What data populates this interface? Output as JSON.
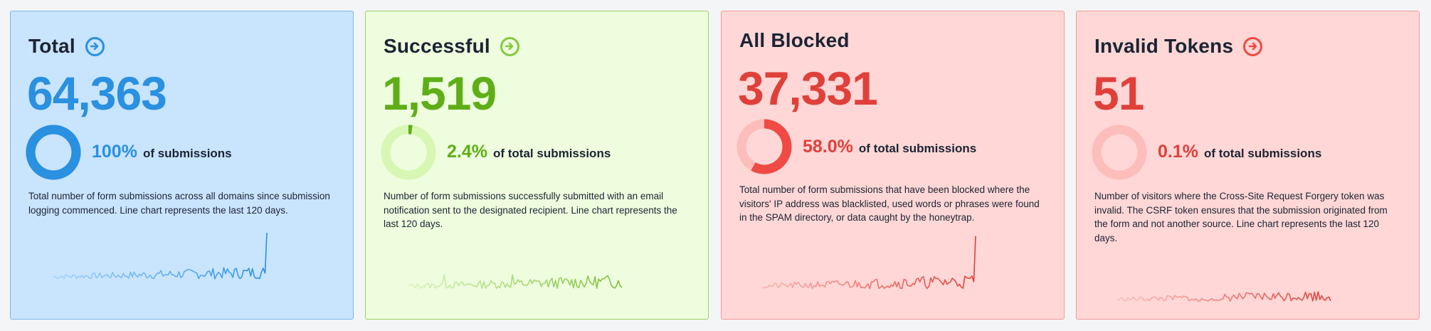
{
  "cards": [
    {
      "title": "Total",
      "value": "64,363",
      "percent": "100%",
      "percent_label": "of submissions",
      "percent_fraction": 1.0,
      "description": "Total number of form submissions across all domains since submission logging commenced. Line chart represents the last 120 days.",
      "has_arrow": true,
      "colors": {
        "accent": "#2a90e0",
        "ring_track": "#2a90e0",
        "spark_light": "#a8d4fb",
        "spark_dark": "#2a90e0"
      }
    },
    {
      "title": "Successful",
      "value": "1,519",
      "percent": "2.4%",
      "percent_label": "of total submissions",
      "percent_fraction": 0.024,
      "description": "Number of form submissions successfully submitted with an email notification sent to the designated recipient. Line chart represents the last 120 days.",
      "has_arrow": true,
      "colors": {
        "accent": "#5fae17",
        "ring_track": "#d8f7b4",
        "spark_light": "#d9f3bd",
        "spark_dark": "#7fbf3c"
      }
    },
    {
      "title": "All Blocked",
      "value": "37,331",
      "percent": "58.0%",
      "percent_label": "of total submissions",
      "percent_fraction": 0.58,
      "description": "Total number of form submissions that have been blocked where the visitors' IP address was blacklisted, used words or phrases were found in the SPAM directory, or data caught by the honeytrap.",
      "has_arrow": false,
      "colors": {
        "accent": "#ef4a43",
        "ring_track": "#fdbdbb",
        "spark_light": "#f9b6b3",
        "spark_dark": "#e0403a"
      }
    },
    {
      "title": "Invalid Tokens",
      "value": "51",
      "percent": "0.1%",
      "percent_label": "of total submissions",
      "percent_fraction": 0.001,
      "description": "Number of visitors where the Cross-Site Request Forgery token was invalid. The CSRF token ensures that the submission originated from the form and not another source. Line chart represents the last 120 days.",
      "has_arrow": true,
      "colors": {
        "accent": "#ef4a43",
        "ring_track": "#fdbdbb",
        "spark_light": "#f9c2bf",
        "spark_dark": "#e0403a"
      }
    }
  ]
}
